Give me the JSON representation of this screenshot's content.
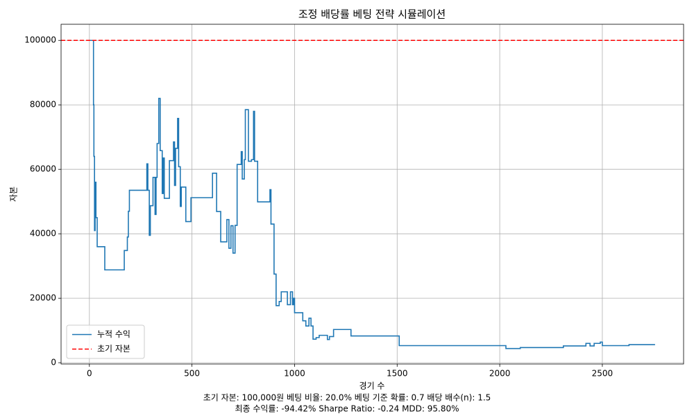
{
  "chart_data": {
    "type": "line",
    "title": "조정 배당률 베팅 전략 시뮬레이션",
    "xlabel": "경기 수",
    "ylabel": "자본",
    "footer": [
      "초기 자본: 100,000원     베팅 비율: 20.0%     베팅 기준 확률: 0.7     배당 배수(n): 1.5",
      "최종 수익률: -94.42%     Sharpe Ratio: -0.24     MDD: 95.80%"
    ],
    "step": true,
    "x": [
      0,
      15,
      20,
      22,
      25,
      28,
      32,
      38,
      75,
      170,
      185,
      190,
      195,
      280,
      285,
      292,
      297,
      310,
      320,
      325,
      330,
      338,
      345,
      355,
      360,
      365,
      390,
      410,
      415,
      420,
      430,
      435,
      443,
      448,
      470,
      495,
      600,
      620,
      640,
      670,
      680,
      690,
      700,
      710,
      720,
      740,
      745,
      755,
      760,
      775,
      790,
      800,
      805,
      820,
      880,
      885,
      900,
      910,
      925,
      935,
      965,
      980,
      990,
      995,
      1000,
      1040,
      1055,
      1070,
      1080,
      1090,
      1105,
      1120,
      1160,
      1170,
      1190,
      1275,
      1510,
      2030,
      2100,
      2310,
      2420,
      2440,
      2460,
      2490,
      2500,
      2630,
      2757
    ],
    "series": [
      {
        "name": "누적 수익",
        "color": "#1f77b4",
        "values": [
          100000,
          100000,
          80000,
          64000,
          41000,
          56000,
          45000,
          36000,
          28800,
          34800,
          39000,
          47000,
          53500,
          61700,
          53500,
          39500,
          48700,
          57500,
          46000,
          57500,
          68000,
          82000,
          65800,
          52500,
          63500,
          51000,
          62700,
          68500,
          55000,
          66500,
          75800,
          60800,
          48500,
          54500,
          43800,
          51200,
          58800,
          46900,
          37500,
          44400,
          35500,
          42500,
          34000,
          42600,
          61500,
          65500,
          57000,
          63000,
          78500,
          62500,
          63000,
          78000,
          62500,
          49900,
          53700,
          43000,
          27500,
          17700,
          19000,
          22000,
          18000,
          22000,
          18000,
          20000,
          15500,
          13000,
          11400,
          13800,
          11400,
          7300,
          7800,
          8500,
          7200,
          8100,
          10300,
          8300,
          5300,
          4400,
          4700,
          5200,
          6000,
          5200,
          6000,
          6400,
          5300,
          5600,
          5600
        ]
      }
    ],
    "reference_line": {
      "name": "초기 자본",
      "value": 100000,
      "color": "#ff0000"
    },
    "xlim": [
      -138,
      2896
    ],
    "ylim": [
      -400,
      105000
    ],
    "xticks": [
      0,
      500,
      1000,
      1500,
      2000,
      2500
    ],
    "yticks": [
      0,
      20000,
      40000,
      60000,
      80000,
      100000
    ],
    "grid": true,
    "legend": "lower left"
  }
}
